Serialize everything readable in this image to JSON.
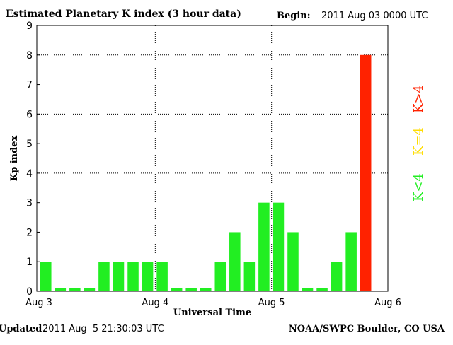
{
  "chart_data": {
    "type": "bar",
    "title": "Estimated Planetary K index (3 hour data)",
    "begin_label": "Begin:",
    "begin_value": "2011 Aug 03 0000 UTC",
    "xlabel": "Universal Time",
    "ylabel": "Kp index",
    "ylim": [
      0,
      9
    ],
    "yticks": [
      "0",
      "1",
      "2",
      "3",
      "4",
      "5",
      "6",
      "7",
      "8",
      "9"
    ],
    "xticks": [
      "Aug 3",
      "Aug 4",
      "Aug 5",
      "Aug 6"
    ],
    "grid": {
      "horizontal_at": [
        4,
        6,
        8
      ],
      "vertical_at": [
        "Aug 4",
        "Aug 5"
      ],
      "style": "dotted"
    },
    "values": [
      1,
      0,
      0,
      0,
      1,
      1,
      1,
      1,
      1,
      0,
      0,
      0,
      1,
      2,
      1,
      3,
      3,
      2,
      0,
      0,
      1,
      2,
      8
    ],
    "interval_hours": 3,
    "colors": {
      "low": "#22ee22",
      "mid": "#ffdd00",
      "high": "#ff2200"
    },
    "legend": [
      {
        "label": "K<4",
        "color": "#22ee22"
      },
      {
        "label": "K=4",
        "color": "#ffdd00"
      },
      {
        "label": "K>4",
        "color": "#ff2200"
      }
    ],
    "legend_placement": "right"
  },
  "footer": {
    "updated_label": "Updated",
    "updated_value": "2011 Aug  5 21:30:03 UTC",
    "source": "NOAA/SWPC Boulder, CO USA"
  }
}
